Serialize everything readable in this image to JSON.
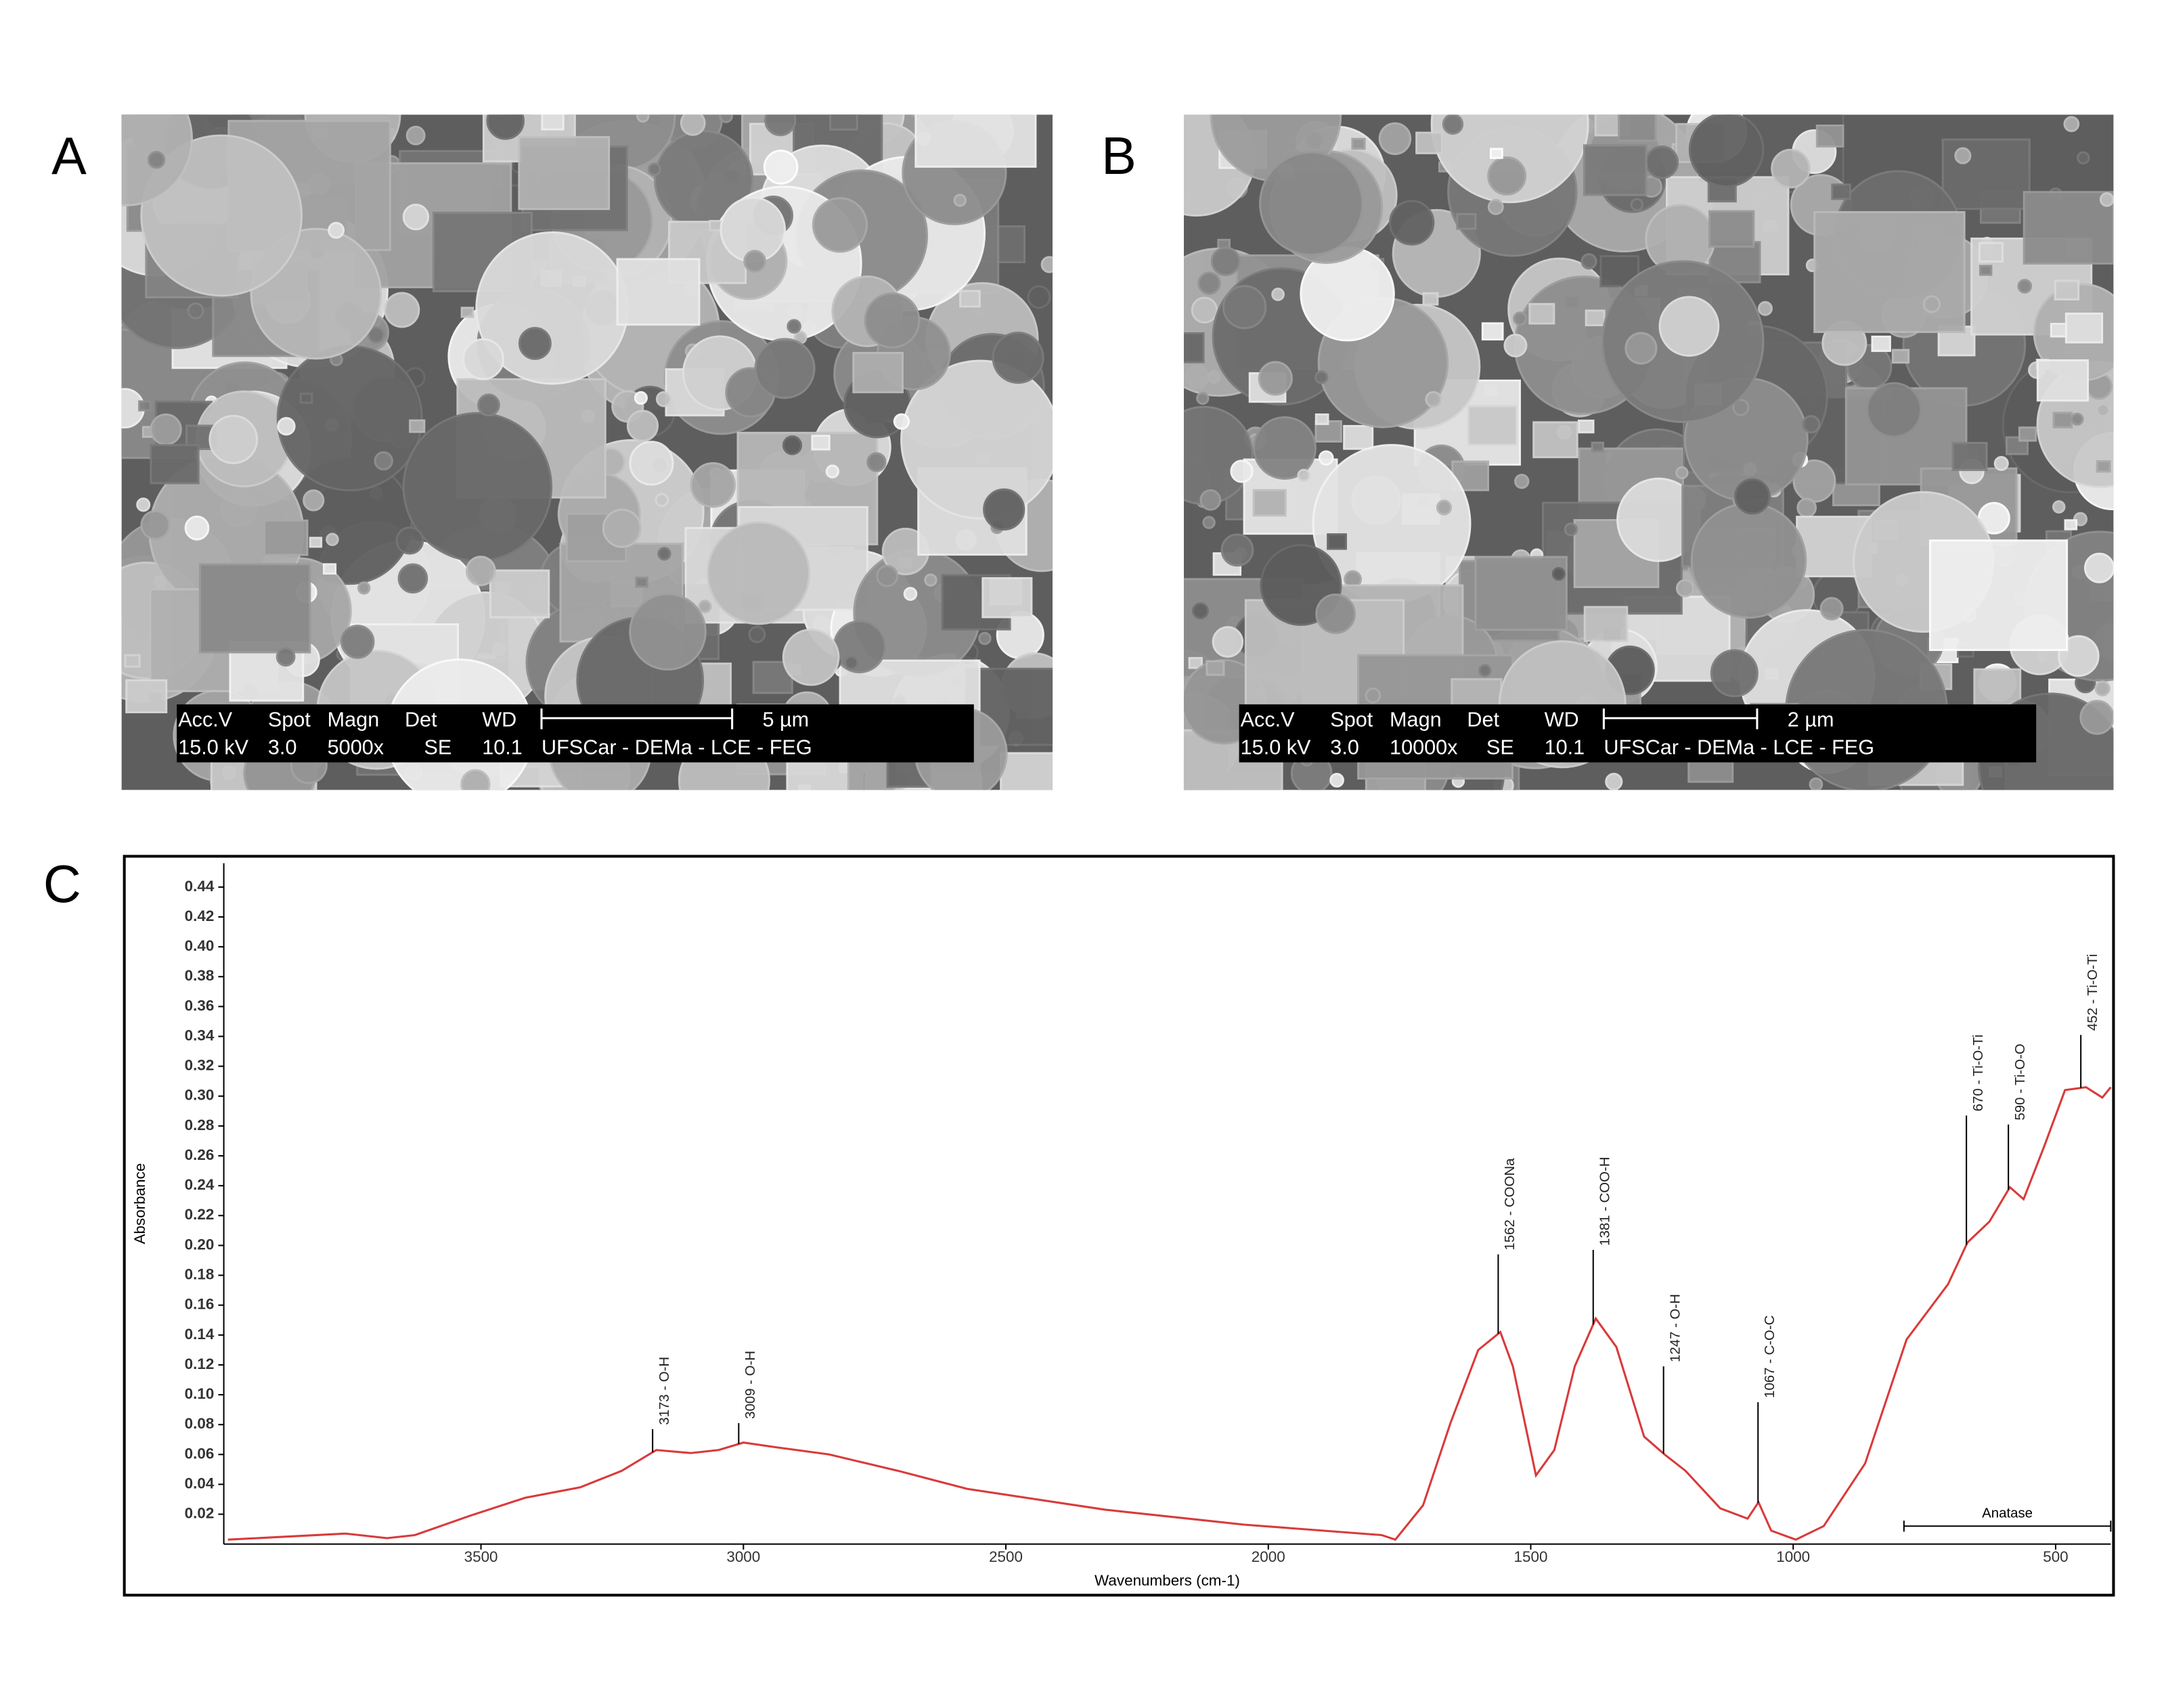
{
  "panels": [
    {
      "letter": "A",
      "fields": [
        "Acc.V",
        "Spot",
        "Magn",
        "Det",
        "WD"
      ],
      "settings": [
        "15.0 kV",
        "3.0",
        "5000x",
        "SE",
        "10.1"
      ],
      "scale": "5 µm",
      "lab": "UFSCar - DEMa - LCE - FEG"
    },
    {
      "letter": "B",
      "fields": [
        "Acc.V",
        "Spot",
        "Magn",
        "Det",
        "WD"
      ],
      "settings": [
        "15.0 kV",
        "3.0",
        "10000x",
        "SE",
        "10.1"
      ],
      "scale": "2 µm",
      "lab": "UFSCar - DEMa - LCE - FEG"
    }
  ],
  "chart_letter": "C",
  "chart_data": {
    "type": "line",
    "xlabel": "Wavenumbers (cm-1)",
    "ylabel": "Absorbance",
    "x": [
      3982,
      3758,
      3679,
      3626,
      3521,
      3416,
      3311,
      3232,
      3166,
      3100,
      3047,
      3000,
      2942,
      2837,
      2705,
      2574,
      2311,
      2047,
      1784,
      1758,
      1705,
      1653,
      1600,
      1558,
      1534,
      1490,
      1455,
      1416,
      1376,
      1337,
      1284,
      1245,
      1205,
      1139,
      1087,
      1066,
      1042,
      995,
      942,
      863,
      784,
      705,
      668,
      626,
      587,
      561,
      521,
      482,
      442,
      411,
      395
    ],
    "series": [
      {
        "color": "#d93a3a",
        "values": [
          0.003,
          0.007,
          0.004,
          0.006,
          0.019,
          0.031,
          0.038,
          0.049,
          0.063,
          0.061,
          0.063,
          0.068,
          0.065,
          0.06,
          0.049,
          0.037,
          0.023,
          0.013,
          0.006,
          0.003,
          0.026,
          0.081,
          0.13,
          0.142,
          0.119,
          0.046,
          0.063,
          0.119,
          0.151,
          0.132,
          0.072,
          0.06,
          0.049,
          0.024,
          0.017,
          0.028,
          0.009,
          0.003,
          0.012,
          0.054,
          0.137,
          0.174,
          0.202,
          0.216,
          0.239,
          0.231,
          0.267,
          0.304,
          0.306,
          0.299,
          0.306
        ]
      }
    ],
    "xlim": [
      3990,
      395
    ],
    "ylim": [
      0,
      0.456
    ],
    "xticks": [
      3500,
      3000,
      2500,
      2000,
      1500,
      1000,
      500
    ],
    "yticks": [
      0.02,
      0.04,
      0.06,
      0.08,
      {
        "value": 0.1,
        "label": "0.10"
      },
      0.12,
      0.14,
      0.16,
      0.18,
      {
        "value": 0.2,
        "label": "0.20"
      },
      0.22,
      0.24,
      0.26,
      0.28,
      {
        "value": 0.3,
        "label": "0.30"
      },
      0.32,
      0.34,
      0.36,
      0.38,
      {
        "value": 0.4,
        "label": "0.40"
      },
      0.42,
      0.44
    ],
    "annotations": [
      {
        "x": 3173,
        "y": 0.077,
        "label": "3173 - O-H"
      },
      {
        "x": 3009,
        "y": 0.081,
        "label": "3009 - O-H"
      },
      {
        "x": 1562,
        "y": 0.194,
        "label": "1562 - COONa"
      },
      {
        "x": 1381,
        "y": 0.197,
        "label": "1381 - COO-H"
      },
      {
        "x": 1247,
        "y": 0.119,
        "label": "1247 - O-H"
      },
      {
        "x": 1067,
        "y": 0.095,
        "label": "1067 - C-O-C"
      },
      {
        "x": 670,
        "y": 0.287,
        "label": "670 - Ti-O-Ti"
      },
      {
        "x": 590,
        "y": 0.281,
        "label": "590 - Ti-O-O"
      },
      {
        "x": 452,
        "y": 0.341,
        "label": "452 - Ti-O-Ti"
      }
    ],
    "ranges": [
      {
        "label": "Anatase",
        "x": [
          789,
          395
        ],
        "y": 0.012
      }
    ]
  }
}
